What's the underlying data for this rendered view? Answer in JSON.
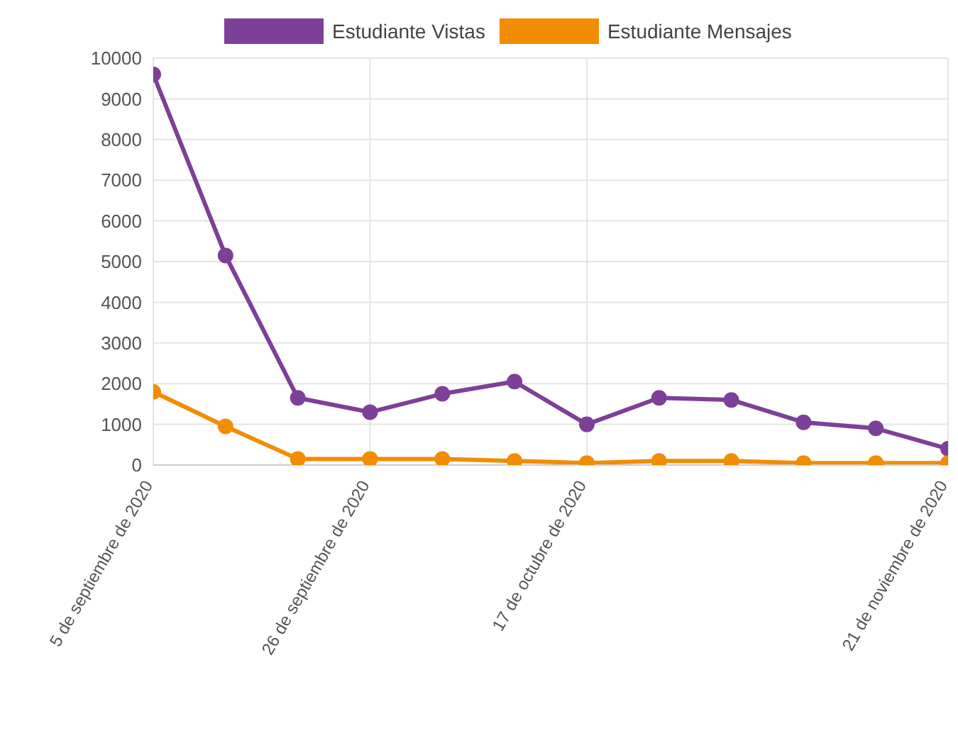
{
  "chart_data": {
    "type": "line",
    "x": [
      "2020-09-05",
      "2020-09-12",
      "2020-09-19",
      "2020-09-26",
      "2020-10-03",
      "2020-10-10",
      "2020-10-17",
      "2020-10-24",
      "2020-10-31",
      "2020-11-07",
      "2020-11-14",
      "2020-11-21"
    ],
    "series": [
      {
        "name": "Estudiante Vistas",
        "color": "#7e3f98",
        "values": [
          9600,
          5150,
          1650,
          1300,
          1750,
          2050,
          1000,
          1650,
          1600,
          1050,
          900,
          400
        ]
      },
      {
        "name": "Estudiante Mensajes",
        "color": "#f28c00",
        "values": [
          1800,
          950,
          150,
          150,
          150,
          100,
          50,
          100,
          100,
          50,
          50,
          50
        ]
      }
    ],
    "xlim": [
      "2020-09-05",
      "2020-11-21"
    ],
    "xticks": [
      {
        "value": "2020-09-05",
        "label": "5 de septiembre de 2020"
      },
      {
        "value": "2020-09-26",
        "label": "26 de septiembre de 2020"
      },
      {
        "value": "2020-10-17",
        "label": "17 de octubre de 2020"
      },
      {
        "value": "2020-11-21",
        "label": "21 de noviembre de 2020"
      }
    ],
    "ylim": [
      0,
      10000
    ],
    "yticks": [
      0,
      1000,
      2000,
      3000,
      4000,
      5000,
      6000,
      7000,
      8000,
      9000,
      10000
    ],
    "grid": true,
    "legend": "top",
    "marker": "circle",
    "line_style": "solid"
  }
}
